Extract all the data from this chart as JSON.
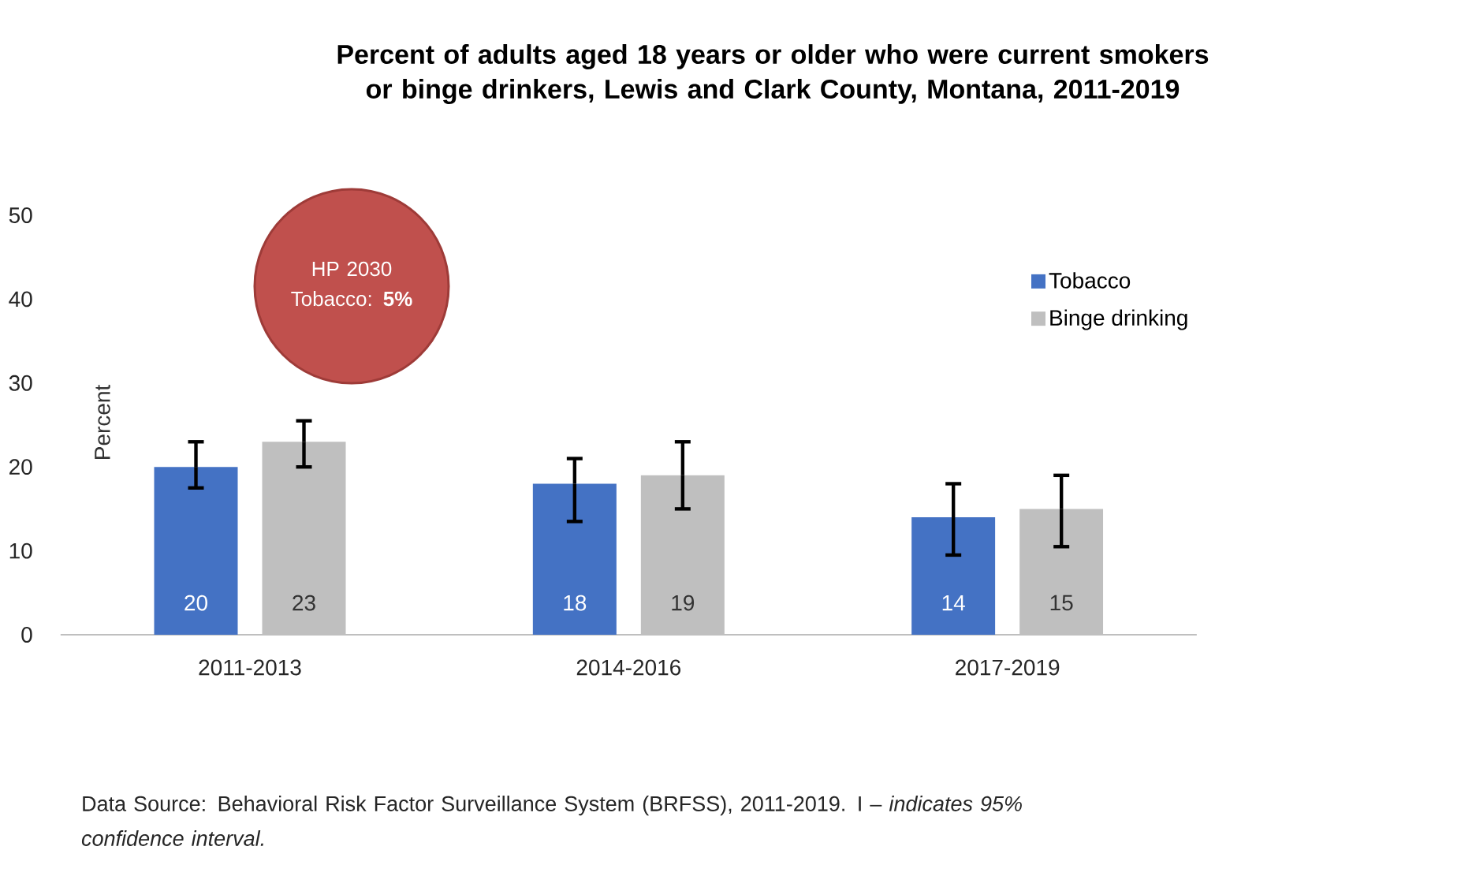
{
  "chart_data": {
    "type": "bar",
    "title": "Percent of adults aged 18 years or older who were current smokers or binge drinkers, Lewis and Clark County, Montana, 2011-2019",
    "ylabel": "Percent",
    "categories": [
      "2011-2013",
      "2014-2016",
      "2017-2019"
    ],
    "series": [
      {
        "name": "Tobacco",
        "color": "#4472c4",
        "values": [
          20,
          18,
          14
        ],
        "errors": [
          [
            17.5,
            23
          ],
          [
            13.5,
            21
          ],
          [
            9.5,
            18
          ]
        ]
      },
      {
        "name": "Binge drinking",
        "color": "#bfbfbf",
        "values": [
          23,
          19,
          15
        ],
        "errors": [
          [
            20,
            25.5
          ],
          [
            15,
            23
          ],
          [
            10.5,
            19
          ]
        ]
      }
    ],
    "ylim": [
      0,
      50
    ],
    "yticks": [
      0,
      10,
      20,
      30,
      40,
      50
    ],
    "data_labels": true,
    "legend": "top right",
    "grid": false,
    "annotations": [
      "HP 2030 Tobacco: **5%**",
      "Data Source: Behavioral Risk Factor Surveillance System (BRFSS), 2011-2019. I – *indicates 95% confidence interval.*"
    ]
  }
}
